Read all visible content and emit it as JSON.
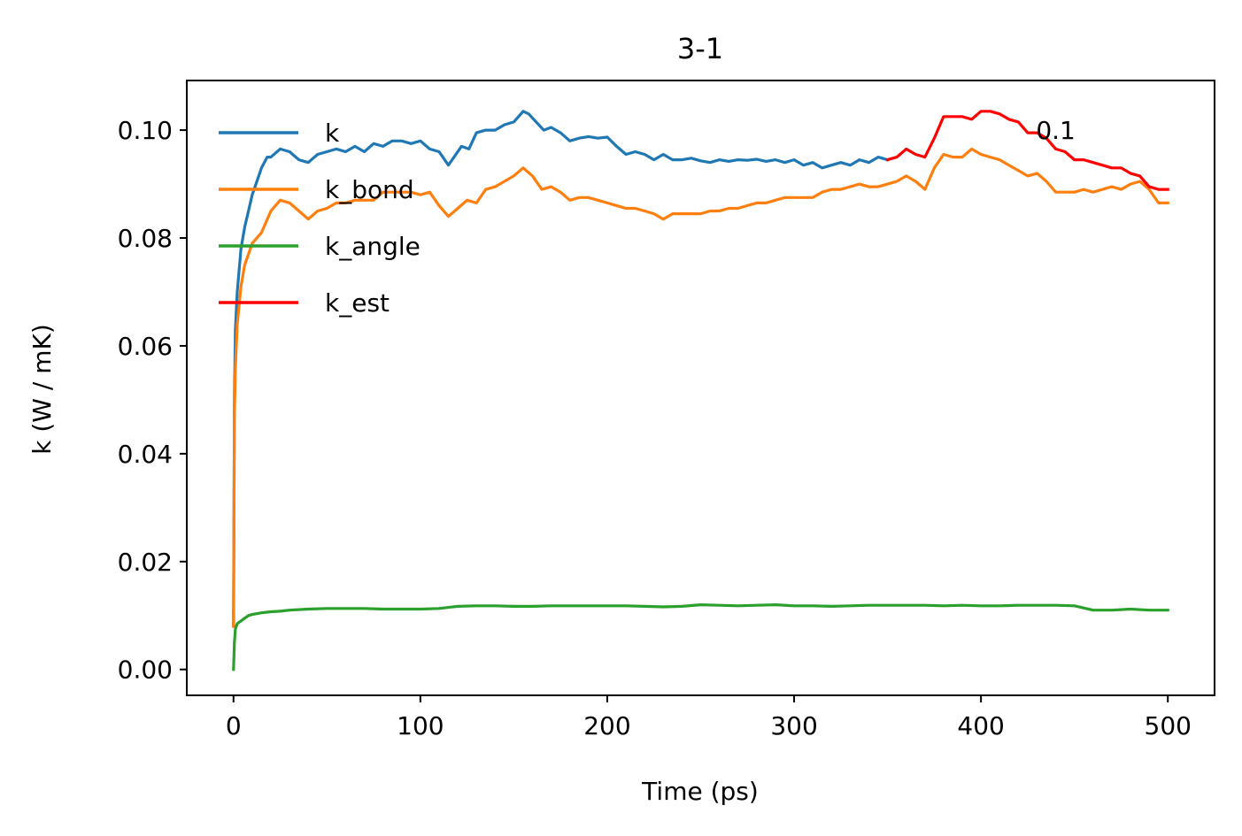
{
  "chart_data": {
    "type": "line",
    "title": "3-1",
    "xlabel": "Time (ps)",
    "ylabel": "k (W / mK)",
    "xlim": [
      -25,
      525
    ],
    "ylim": [
      -0.0048,
      0.1092
    ],
    "xticks": [
      0,
      100,
      200,
      300,
      400,
      500
    ],
    "xtick_labels": [
      "0",
      "100",
      "200",
      "300",
      "400",
      "500"
    ],
    "yticks": [
      0.0,
      0.02,
      0.04,
      0.06,
      0.08,
      0.1
    ],
    "ytick_labels": [
      "0.00",
      "0.02",
      "0.04",
      "0.06",
      "0.08",
      "0.10"
    ],
    "grid": false,
    "legend_position": "upper-left",
    "annotation": {
      "text": "0.1",
      "x": 440,
      "y": 0.1
    },
    "series": [
      {
        "name": "k",
        "color": "#1f77b4",
        "x": [
          0,
          0.5,
          1,
          2,
          4,
          6,
          8,
          10,
          12,
          15,
          18,
          20,
          25,
          30,
          35,
          40,
          45,
          50,
          55,
          60,
          65,
          70,
          75,
          80,
          85,
          90,
          95,
          100,
          105,
          110,
          115,
          118,
          122,
          126,
          130,
          135,
          140,
          145,
          150,
          155,
          158,
          162,
          166,
          170,
          175,
          180,
          185,
          190,
          195,
          200,
          205,
          210,
          215,
          220,
          225,
          230,
          235,
          240,
          245,
          250,
          255,
          260,
          265,
          270,
          275,
          280,
          285,
          290,
          295,
          300,
          305,
          310,
          315,
          320,
          325,
          330,
          335,
          340,
          345,
          350
        ],
        "y": [
          0.008,
          0.05,
          0.063,
          0.07,
          0.078,
          0.082,
          0.085,
          0.088,
          0.09,
          0.093,
          0.095,
          0.095,
          0.0965,
          0.096,
          0.0945,
          0.094,
          0.0955,
          0.096,
          0.0965,
          0.096,
          0.097,
          0.096,
          0.0975,
          0.097,
          0.098,
          0.098,
          0.0975,
          0.098,
          0.0965,
          0.096,
          0.0935,
          0.095,
          0.097,
          0.0965,
          0.0995,
          0.1,
          0.1,
          0.101,
          0.1015,
          0.1035,
          0.103,
          0.1015,
          0.1,
          0.1005,
          0.0995,
          0.098,
          0.0985,
          0.0988,
          0.0985,
          0.0987,
          0.097,
          0.0955,
          0.096,
          0.0955,
          0.0945,
          0.0955,
          0.0945,
          0.0945,
          0.0948,
          0.0943,
          0.094,
          0.0945,
          0.0942,
          0.0945,
          0.0944,
          0.0946,
          0.0942,
          0.0945,
          0.094,
          0.0945,
          0.0935,
          0.094,
          0.093,
          0.0935,
          0.094,
          0.0935,
          0.0945,
          0.094,
          0.095,
          0.0945
        ]
      },
      {
        "name": "k_bond",
        "color": "#ff7f0e",
        "x": [
          0,
          0.5,
          1,
          2,
          4,
          6,
          8,
          10,
          15,
          20,
          25,
          30,
          35,
          40,
          45,
          50,
          55,
          60,
          65,
          70,
          75,
          80,
          85,
          90,
          95,
          100,
          105,
          110,
          115,
          120,
          125,
          130,
          135,
          140,
          145,
          150,
          155,
          160,
          165,
          170,
          175,
          180,
          185,
          190,
          195,
          200,
          205,
          210,
          215,
          220,
          225,
          230,
          235,
          240,
          245,
          250,
          255,
          260,
          265,
          270,
          275,
          280,
          285,
          290,
          295,
          300,
          305,
          310,
          315,
          320,
          325,
          330,
          335,
          340,
          345,
          350,
          355,
          360,
          365,
          370,
          375,
          380,
          385,
          390,
          395,
          400,
          405,
          410,
          415,
          420,
          425,
          430,
          435,
          440,
          445,
          450,
          455,
          460,
          465,
          470,
          475,
          480,
          485,
          490,
          495,
          500
        ],
        "y": [
          0.008,
          0.047,
          0.056,
          0.064,
          0.071,
          0.075,
          0.077,
          0.079,
          0.081,
          0.085,
          0.087,
          0.0865,
          0.085,
          0.0835,
          0.085,
          0.0855,
          0.0865,
          0.0865,
          0.087,
          0.087,
          0.087,
          0.0885,
          0.0885,
          0.0885,
          0.0885,
          0.088,
          0.0885,
          0.086,
          0.084,
          0.0855,
          0.087,
          0.0865,
          0.089,
          0.0895,
          0.0905,
          0.0915,
          0.093,
          0.0915,
          0.089,
          0.0895,
          0.0885,
          0.087,
          0.0875,
          0.0875,
          0.087,
          0.0865,
          0.086,
          0.0855,
          0.0855,
          0.085,
          0.0845,
          0.0835,
          0.0845,
          0.0845,
          0.0845,
          0.0845,
          0.085,
          0.085,
          0.0855,
          0.0855,
          0.086,
          0.0865,
          0.0865,
          0.087,
          0.0875,
          0.0875,
          0.0875,
          0.0875,
          0.0885,
          0.089,
          0.089,
          0.0895,
          0.09,
          0.0895,
          0.0895,
          0.09,
          0.0905,
          0.0915,
          0.0905,
          0.089,
          0.093,
          0.0955,
          0.095,
          0.095,
          0.0965,
          0.0955,
          0.095,
          0.0945,
          0.0935,
          0.0925,
          0.0915,
          0.092,
          0.0905,
          0.0885,
          0.0885,
          0.0885,
          0.089,
          0.0885,
          0.089,
          0.0895,
          0.089,
          0.09,
          0.0905,
          0.089,
          0.0865,
          0.0865
        ]
      },
      {
        "name": "k_angle",
        "color": "#2ca02c",
        "x": [
          0,
          0.5,
          1,
          2,
          4,
          6,
          8,
          10,
          15,
          20,
          25,
          30,
          40,
          50,
          60,
          70,
          80,
          90,
          100,
          110,
          120,
          130,
          140,
          150,
          160,
          170,
          180,
          190,
          200,
          210,
          220,
          230,
          240,
          250,
          260,
          270,
          280,
          290,
          300,
          310,
          320,
          330,
          340,
          350,
          360,
          370,
          380,
          390,
          400,
          410,
          420,
          430,
          440,
          450,
          460,
          470,
          480,
          490,
          500
        ],
        "y": [
          0.0,
          0.005,
          0.0075,
          0.0085,
          0.009,
          0.0095,
          0.01,
          0.0102,
          0.0105,
          0.0107,
          0.0108,
          0.011,
          0.0112,
          0.0113,
          0.0113,
          0.0113,
          0.0112,
          0.0112,
          0.0112,
          0.0113,
          0.0117,
          0.0118,
          0.0118,
          0.0117,
          0.0117,
          0.0118,
          0.0118,
          0.0118,
          0.0118,
          0.0118,
          0.0117,
          0.0116,
          0.0117,
          0.012,
          0.0119,
          0.0118,
          0.0119,
          0.012,
          0.0118,
          0.0118,
          0.0117,
          0.0118,
          0.0119,
          0.0119,
          0.0119,
          0.0119,
          0.0118,
          0.0119,
          0.0118,
          0.0118,
          0.0119,
          0.0119,
          0.0119,
          0.0118,
          0.011,
          0.011,
          0.0112,
          0.011,
          0.011
        ]
      },
      {
        "name": "k_est",
        "color": "#ff0000",
        "x": [
          350,
          355,
          360,
          365,
          370,
          375,
          380,
          385,
          390,
          395,
          400,
          405,
          410,
          415,
          420,
          425,
          430,
          435,
          440,
          445,
          450,
          455,
          460,
          465,
          470,
          475,
          480,
          485,
          490,
          495,
          500
        ],
        "y": [
          0.0945,
          0.095,
          0.0965,
          0.0955,
          0.095,
          0.0985,
          0.1025,
          0.1025,
          0.1025,
          0.102,
          0.1035,
          0.1035,
          0.103,
          0.102,
          0.1015,
          0.0995,
          0.0995,
          0.0985,
          0.0965,
          0.096,
          0.0945,
          0.0945,
          0.094,
          0.0935,
          0.093,
          0.093,
          0.092,
          0.0915,
          0.0895,
          0.089,
          0.089
        ]
      }
    ]
  }
}
